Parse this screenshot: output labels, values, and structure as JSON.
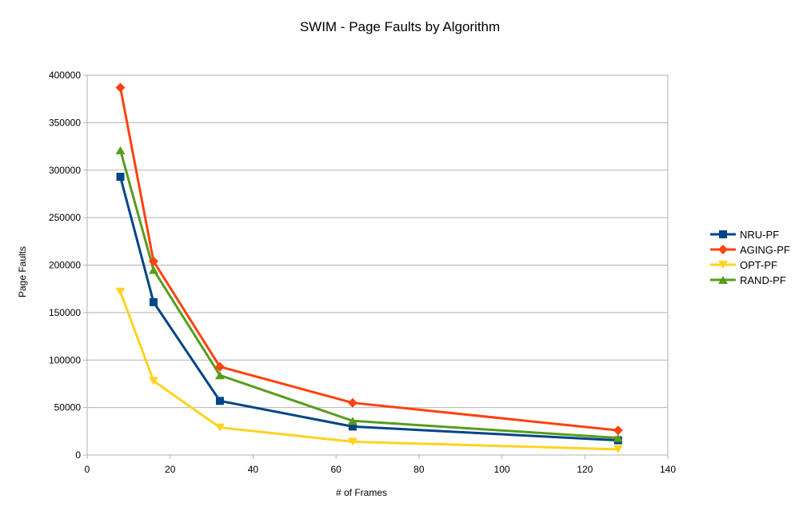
{
  "chart_data": {
    "type": "line",
    "title": "SWIM - Page Faults by Algorithm",
    "xlabel": "# of Frames",
    "ylabel": "Page Faults",
    "xlim": [
      0,
      140
    ],
    "ylim": [
      0,
      400000
    ],
    "xticks": [
      0,
      20,
      40,
      60,
      80,
      100,
      120,
      140
    ],
    "yticks": [
      0,
      50000,
      100000,
      150000,
      200000,
      250000,
      300000,
      350000,
      400000
    ],
    "grid": "horizontal",
    "legend_position": "right",
    "x": [
      8,
      16,
      32,
      64,
      128
    ],
    "series": [
      {
        "name": "NRU-PF",
        "color": "#004586",
        "marker": "square",
        "values": [
          293000,
          161000,
          57000,
          30000,
          15500
        ]
      },
      {
        "name": "AGING-PF",
        "color": "#ff420e",
        "marker": "diamond",
        "values": [
          387000,
          204000,
          93000,
          55000,
          26000
        ]
      },
      {
        "name": "OPT-PF",
        "color": "#ffd320",
        "marker": "triangle-down",
        "values": [
          172000,
          78000,
          29000,
          14000,
          6000
        ]
      },
      {
        "name": "RAND-PF",
        "color": "#579d1c",
        "marker": "triangle-up",
        "values": [
          321000,
          195000,
          84000,
          36000,
          18000
        ]
      }
    ]
  }
}
